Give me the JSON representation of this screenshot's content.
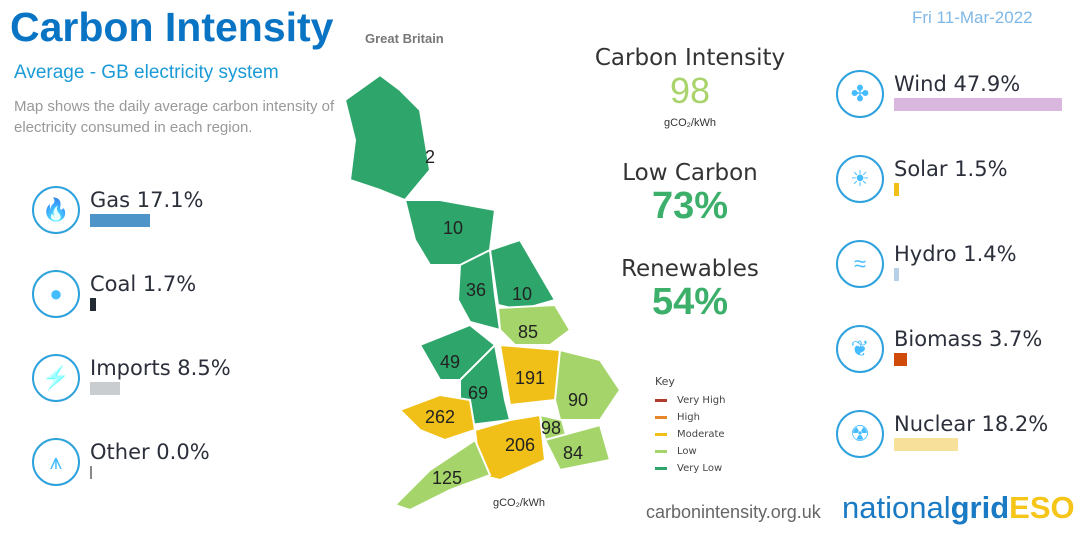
{
  "header": {
    "title": "Carbon Intensity",
    "region": "Great Britain",
    "date": "Fri 11-Mar-2022",
    "subtitle": "Average - GB electricity system",
    "description": "Map shows the daily average carbon intensity of electricity consumed in each region."
  },
  "summary": {
    "ci_title": "Carbon Intensity",
    "ci_value": "98",
    "ci_unit": "gCO₂/kWh",
    "low_carbon_title": "Low Carbon",
    "low_carbon_value": "73%",
    "renewables_title": "Renewables",
    "renewables_value": "54%",
    "colors": {
      "ci": "#a9d36b",
      "low": "#3cb06a"
    }
  },
  "fuels_left": [
    {
      "label": "Gas 17.1%",
      "percent": 17.1,
      "color": "#4f94c8",
      "icon": "flame-icon"
    },
    {
      "label": "Coal 1.7%",
      "percent": 1.7,
      "color": "#222a33",
      "icon": "coal-icon"
    },
    {
      "label": "Imports 8.5%",
      "percent": 8.5,
      "color": "#c9cdd0",
      "icon": "lightning-icon"
    },
    {
      "label": "Other 0.0%",
      "percent": 0.0,
      "color": "#888888",
      "icon": "pylon-icon"
    }
  ],
  "fuels_right": [
    {
      "label": "Wind 47.9%",
      "percent": 47.9,
      "color": "#d9b7de",
      "icon": "wind-turbine-icon"
    },
    {
      "label": "Solar 1.5%",
      "percent": 1.5,
      "color": "#f0c018",
      "icon": "sun-icon"
    },
    {
      "label": "Hydro 1.4%",
      "percent": 1.4,
      "color": "#b8d0e6",
      "icon": "waves-icon"
    },
    {
      "label": "Biomass 3.7%",
      "percent": 3.7,
      "color": "#d04a0a",
      "icon": "leaf-icon"
    },
    {
      "label": "Nuclear 18.2%",
      "percent": 18.2,
      "color": "#f7e09a",
      "icon": "radiation-icon"
    }
  ],
  "map": {
    "regions": [
      {
        "value": "2",
        "level": "Very Low"
      },
      {
        "value": "10",
        "level": "Very Low"
      },
      {
        "value": "36",
        "level": "Very Low"
      },
      {
        "value": "10",
        "level": "Very Low"
      },
      {
        "value": "85",
        "level": "Low"
      },
      {
        "value": "49",
        "level": "Very Low"
      },
      {
        "value": "69",
        "level": "Very Low"
      },
      {
        "value": "191",
        "level": "Moderate"
      },
      {
        "value": "90",
        "level": "Low"
      },
      {
        "value": "262",
        "level": "Moderate"
      },
      {
        "value": "98",
        "level": "Low"
      },
      {
        "value": "84",
        "level": "Low"
      },
      {
        "value": "206",
        "level": "Moderate"
      },
      {
        "value": "125",
        "level": "Low"
      }
    ],
    "unit": "gCO₂/kWh"
  },
  "key": {
    "title": "Key",
    "items": [
      {
        "label": "Very High",
        "color": "#b03a2e"
      },
      {
        "label": "High",
        "color": "#e8862a"
      },
      {
        "label": "Moderate",
        "color": "#f0c018"
      },
      {
        "label": "Low",
        "color": "#a5d56a"
      },
      {
        "label": "Very Low",
        "color": "#2ea56a"
      }
    ]
  },
  "footer": {
    "site": "carbonintensity.org.uk",
    "logo_a": "national",
    "logo_b": "grid",
    "logo_c": "ESO"
  }
}
